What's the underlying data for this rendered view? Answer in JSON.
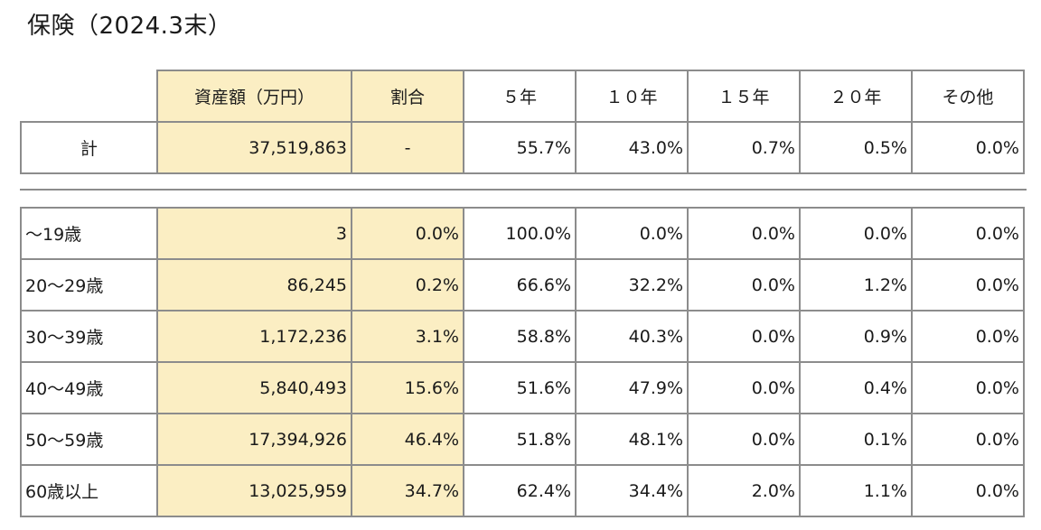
{
  "title": "保険（2024.3末）",
  "headers": [
    "",
    "資産額（万円）",
    "割合",
    "５年",
    "１０年",
    "１５年",
    "２０年",
    "その他"
  ],
  "total": {
    "label": "計",
    "asset": "37,519,863",
    "ratio": "-",
    "y5": "55.7%",
    "y10": "43.0%",
    "y15": "0.7%",
    "y20": "0.5%",
    "other": "0.0%"
  },
  "rows": [
    {
      "label": "～19歳",
      "asset": "3",
      "ratio": "0.0%",
      "y5": "100.0%",
      "y10": "0.0%",
      "y15": "0.0%",
      "y20": "0.0%",
      "other": "0.0%"
    },
    {
      "label": "20～29歳",
      "asset": "86,245",
      "ratio": "0.2%",
      "y5": "66.6%",
      "y10": "32.2%",
      "y15": "0.0%",
      "y20": "1.2%",
      "other": "0.0%"
    },
    {
      "label": "30～39歳",
      "asset": "1,172,236",
      "ratio": "3.1%",
      "y5": "58.8%",
      "y10": "40.3%",
      "y15": "0.0%",
      "y20": "0.9%",
      "other": "0.0%"
    },
    {
      "label": "40～49歳",
      "asset": "5,840,493",
      "ratio": "15.6%",
      "y5": "51.6%",
      "y10": "47.9%",
      "y15": "0.0%",
      "y20": "0.4%",
      "other": "0.0%"
    },
    {
      "label": "50～59歳",
      "asset": "17,394,926",
      "ratio": "46.4%",
      "y5": "51.8%",
      "y10": "48.1%",
      "y15": "0.0%",
      "y20": "0.1%",
      "other": "0.0%"
    },
    {
      "label": "60歳以上",
      "asset": "13,025,959",
      "ratio": "34.7%",
      "y5": "62.4%",
      "y10": "34.4%",
      "y15": "2.0%",
      "y20": "1.1%",
      "other": "0.0%"
    }
  ],
  "colors": {
    "highlight": "#fbeec3",
    "border": "#8c8c8c"
  }
}
